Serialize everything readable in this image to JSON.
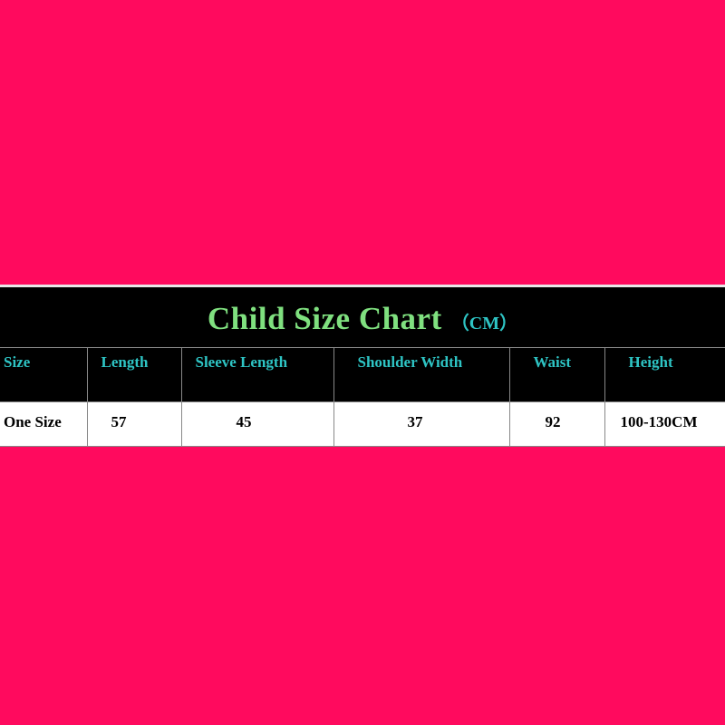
{
  "title": "Child Size Chart",
  "unit": "（CM）",
  "colors": {
    "background": "#ff0a5e",
    "title": "#7fe07f",
    "header": "#2ec4c4"
  },
  "headers": [
    "Size",
    "Length",
    "Sleeve Length",
    "Shoulder Width",
    "Waist",
    "Height"
  ],
  "rows": [
    [
      "One Size",
      "57",
      "45",
      "37",
      "92",
      "100-130CM"
    ]
  ]
}
